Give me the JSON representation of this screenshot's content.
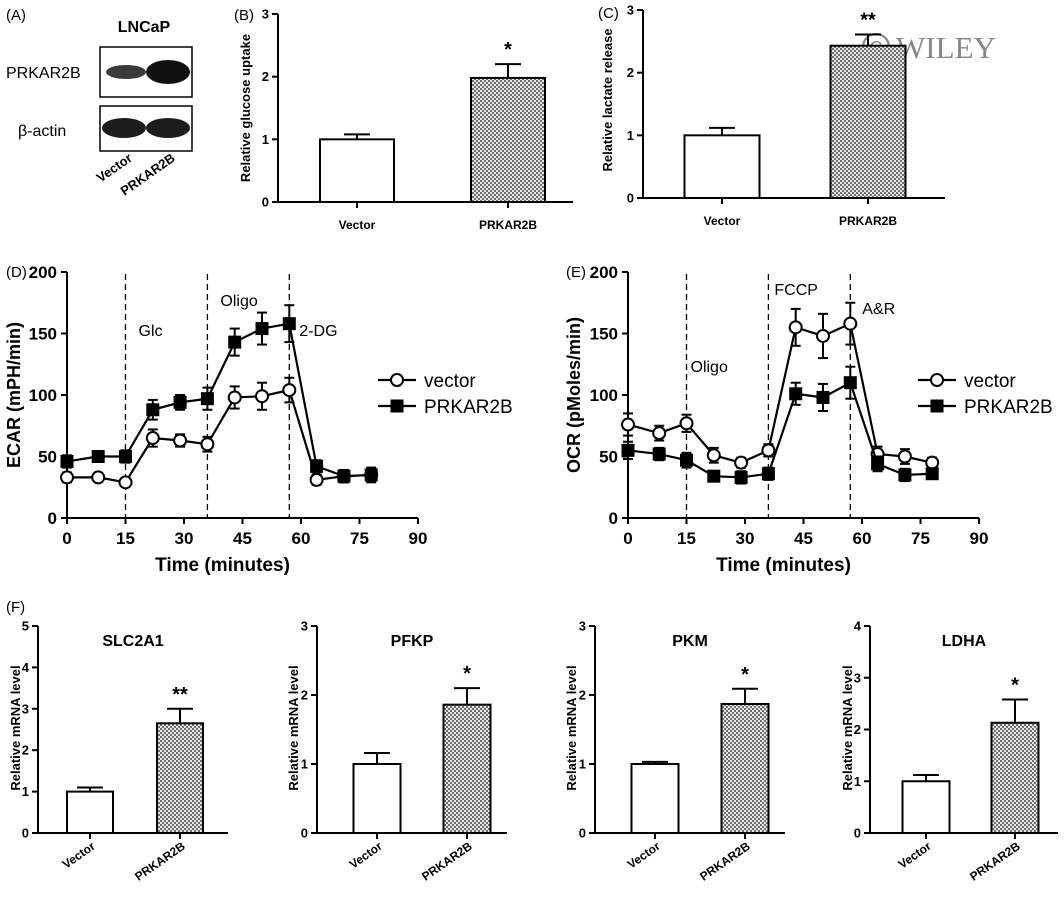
{
  "watermark": "WILEY",
  "colors": {
    "ink": "#000000",
    "bar_vector": "#ffffff",
    "bar_prkar2b_hatch": "#9a9a9a"
  },
  "panelA": {
    "label": "(A)",
    "cell_line": "LNCaP",
    "rows": [
      "PRKAR2B",
      "β-actin"
    ],
    "lanes": [
      "Vector",
      "PRKAR2B"
    ]
  },
  "chart_data": [
    {
      "id": "B",
      "panel_label": "(B)",
      "type": "bar",
      "categories": [
        "Vector",
        "PRKAR2B"
      ],
      "values": [
        1.0,
        1.98
      ],
      "errors": [
        0.08,
        0.22
      ],
      "ylabel": "Relative glucose uptake",
      "ylim": [
        0,
        3
      ],
      "yticks": [
        "0",
        "1",
        "2",
        "3"
      ],
      "significance": [
        "",
        "*"
      ]
    },
    {
      "id": "C",
      "panel_label": "(C)",
      "type": "bar",
      "categories": [
        "Vector",
        "PRKAR2B"
      ],
      "values": [
        1.0,
        2.43
      ],
      "errors": [
        0.12,
        0.18
      ],
      "ylabel": "Relative lactate release",
      "ylim": [
        0,
        3
      ],
      "yticks": [
        "0",
        "1",
        "2",
        "3"
      ],
      "significance": [
        "",
        "**"
      ]
    },
    {
      "id": "D",
      "panel_label": "(D)",
      "type": "line",
      "ylabel": "ECAR (mPH/min)",
      "xlabel": "Time (minutes)",
      "xlim": [
        0,
        90
      ],
      "ylim": [
        0,
        200
      ],
      "xticks": [
        "0",
        "15",
        "30",
        "45",
        "60",
        "75",
        "90"
      ],
      "yticks": [
        "0",
        "50",
        "100",
        "150",
        "200"
      ],
      "annotations": [
        {
          "x": 15,
          "text": "Glc"
        },
        {
          "x": 36,
          "text": "Oligo"
        },
        {
          "x": 57,
          "text": "2-DG"
        }
      ],
      "x": [
        0,
        8,
        15,
        22,
        29,
        36,
        43,
        50,
        57,
        64,
        71,
        78
      ],
      "series": [
        {
          "name": "vector",
          "marker": "open-circle",
          "values": [
            33,
            33,
            29,
            65,
            63,
            60,
            98,
            99,
            104,
            31,
            34,
            35
          ],
          "errors": [
            4,
            3,
            3,
            7,
            5,
            6,
            9,
            11,
            10,
            4,
            5,
            5
          ]
        },
        {
          "name": "PRKAR2B",
          "marker": "filled-square",
          "values": [
            46,
            50,
            50,
            88,
            94,
            97,
            143,
            154,
            158,
            42,
            34,
            35
          ],
          "errors": [
            5,
            4,
            5,
            8,
            6,
            9,
            11,
            13,
            15,
            5,
            5,
            6
          ]
        }
      ],
      "legend_position": "right"
    },
    {
      "id": "E",
      "panel_label": "(E)",
      "type": "line",
      "ylabel": "OCR (pMoles/min)",
      "xlabel": "Time (minutes)",
      "xlim": [
        0,
        90
      ],
      "ylim": [
        0,
        200
      ],
      "xticks": [
        "0",
        "15",
        "30",
        "45",
        "60",
        "75",
        "90"
      ],
      "yticks": [
        "0",
        "50",
        "100",
        "150",
        "200"
      ],
      "annotations": [
        {
          "x": 15,
          "text": "Oligo"
        },
        {
          "x": 36,
          "text": "FCCP"
        },
        {
          "x": 57,
          "text": "A&R"
        }
      ],
      "x": [
        0,
        8,
        15,
        22,
        29,
        36,
        43,
        50,
        57,
        64,
        71,
        78
      ],
      "series": [
        {
          "name": "vector",
          "marker": "open-circle",
          "values": [
            76,
            69,
            77,
            51,
            45,
            55,
            155,
            148,
            158,
            52,
            50,
            45
          ],
          "errors": [
            9,
            6,
            7,
            6,
            4,
            5,
            15,
            18,
            17,
            6,
            6,
            4
          ]
        },
        {
          "name": "PRKAR2B",
          "marker": "filled-square",
          "values": [
            55,
            52,
            47,
            34,
            33,
            36,
            101,
            98,
            110,
            44,
            35,
            36
          ],
          "errors": [
            7,
            5,
            6,
            4,
            5,
            5,
            9,
            11,
            13,
            6,
            5,
            4
          ]
        }
      ],
      "legend_position": "right"
    },
    {
      "id": "F1",
      "panel_label": "(F)",
      "type": "bar",
      "title": "SLC2A1",
      "categories": [
        "Vector",
        "PRKAR2B"
      ],
      "values": [
        1.0,
        2.65
      ],
      "errors": [
        0.1,
        0.35
      ],
      "ylabel": "Relative mRNA level",
      "ylim": [
        0,
        5
      ],
      "yticks": [
        "0",
        "1",
        "2",
        "3",
        "4",
        "5"
      ],
      "significance": [
        "",
        "**"
      ]
    },
    {
      "id": "F2",
      "panel_label": "",
      "type": "bar",
      "title": "PFKP",
      "categories": [
        "Vector",
        "PRKAR2B"
      ],
      "values": [
        1.0,
        1.86
      ],
      "errors": [
        0.16,
        0.24
      ],
      "ylabel": "Relative mRNA level",
      "ylim": [
        0,
        3
      ],
      "yticks": [
        "0",
        "1",
        "2",
        "3"
      ],
      "significance": [
        "",
        "*"
      ]
    },
    {
      "id": "F3",
      "panel_label": "",
      "type": "bar",
      "title": "PKM",
      "categories": [
        "Vector",
        "PRKAR2B"
      ],
      "values": [
        1.0,
        1.87
      ],
      "errors": [
        0.03,
        0.22
      ],
      "ylabel": "Relative mRNA level",
      "ylim": [
        0,
        3
      ],
      "yticks": [
        "0",
        "1",
        "2",
        "3"
      ],
      "significance": [
        "",
        "*"
      ]
    },
    {
      "id": "F4",
      "panel_label": "",
      "type": "bar",
      "title": "LDHA",
      "categories": [
        "Vector",
        "PRKAR2B"
      ],
      "values": [
        1.0,
        2.13
      ],
      "errors": [
        0.12,
        0.45
      ],
      "ylabel": "Relative mRNA level",
      "ylim": [
        0,
        4
      ],
      "yticks": [
        "0",
        "1",
        "2",
        "3",
        "4"
      ],
      "significance": [
        "",
        "*"
      ]
    }
  ]
}
